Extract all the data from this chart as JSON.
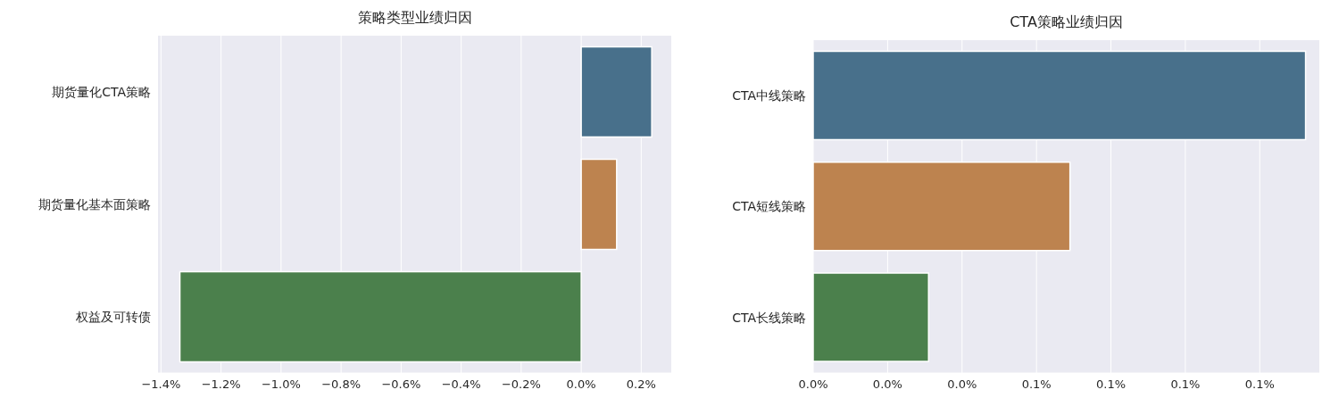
{
  "chart_data": [
    {
      "type": "bar",
      "orientation": "horizontal",
      "title": "策略类型业绩归因",
      "categories": [
        "期货量化CTA策略",
        "期货量化基本面策略",
        "权益及可转债"
      ],
      "values": [
        0.235,
        0.118,
        -1.337
      ],
      "colors": [
        "#48708b",
        "#bd834f",
        "#4b804c"
      ],
      "xlim": [
        -1.41,
        0.3
      ],
      "xticks": [
        {
          "value": -1.4,
          "label": "−1.4%"
        },
        {
          "value": -1.2,
          "label": "−1.2%"
        },
        {
          "value": -1.0,
          "label": "−1.0%"
        },
        {
          "value": -0.8,
          "label": "−0.8%"
        },
        {
          "value": -0.6,
          "label": "−0.6%"
        },
        {
          "value": -0.4,
          "label": "−0.4%"
        },
        {
          "value": -0.2,
          "label": "−0.2%"
        },
        {
          "value": 0,
          "label": "0.0%"
        },
        {
          "value": 0.2,
          "label": "0.2%"
        }
      ],
      "grid": "x"
    },
    {
      "type": "bar",
      "orientation": "horizontal",
      "title": "CTA策略业绩归因",
      "categories": [
        "CTA中线策略",
        "CTA短线策略",
        "CTA长线策略"
      ],
      "values": [
        0.1323,
        0.069,
        0.031
      ],
      "colors": [
        "#48708b",
        "#bd834f",
        "#4b804c"
      ],
      "xlim": [
        0,
        0.136
      ],
      "xticks": [
        {
          "value": 0,
          "label": "0.0%"
        },
        {
          "value": 0.02,
          "label": "0.0%"
        },
        {
          "value": 0.04,
          "label": "0.0%"
        },
        {
          "value": 0.06,
          "label": "0.1%"
        },
        {
          "value": 0.08,
          "label": "0.1%"
        },
        {
          "value": 0.1,
          "label": "0.1%"
        },
        {
          "value": 0.12,
          "label": "0.1%"
        }
      ],
      "grid": "x"
    }
  ]
}
